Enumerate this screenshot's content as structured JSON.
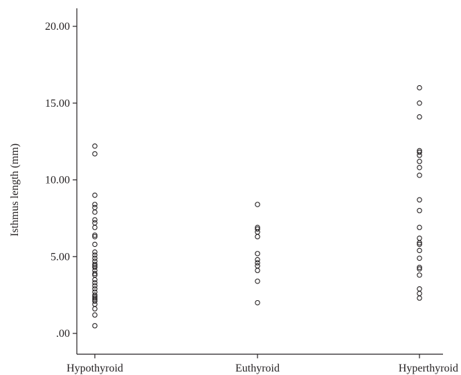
{
  "chart_data": {
    "type": "scatter",
    "title": "",
    "xlabel": "",
    "ylabel": "Isthmus length (mm)",
    "categories": [
      "Hypothyroid",
      "Euthyroid",
      "Hyperthyroid"
    ],
    "ylim": [
      -1,
      21.2
    ],
    "yticks": [
      0,
      5,
      10,
      15,
      20
    ],
    "ytick_labels": [
      ".00",
      "5.00",
      "10.00",
      "15.00",
      "20.00"
    ],
    "grid": false,
    "marker": "open-circle",
    "color": "#231f20",
    "points": {
      "Hypothyroid": [
        12.2,
        11.7,
        9.0,
        8.4,
        8.2,
        7.9,
        7.4,
        7.2,
        6.9,
        6.4,
        6.3,
        5.8,
        5.3,
        5.1,
        4.9,
        4.7,
        4.5,
        4.4,
        4.3,
        4.1,
        3.9,
        3.8,
        3.5,
        3.3,
        3.1,
        2.9,
        2.7,
        2.5,
        2.4,
        2.3,
        2.2,
        2.1,
        1.9,
        1.6,
        1.2,
        0.5
      ],
      "Euthyroid": [
        8.4,
        6.9,
        6.8,
        6.6,
        6.3,
        5.2,
        4.8,
        4.6,
        4.4,
        4.1,
        3.4,
        2.0
      ],
      "Hyperthyroid": [
        16.0,
        15.0,
        14.1,
        11.9,
        11.8,
        11.6,
        11.2,
        10.8,
        10.3,
        8.7,
        8.0,
        6.9,
        6.2,
        5.9,
        5.8,
        5.4,
        4.9,
        4.3,
        4.2,
        3.8,
        2.9,
        2.6,
        2.3
      ]
    }
  }
}
